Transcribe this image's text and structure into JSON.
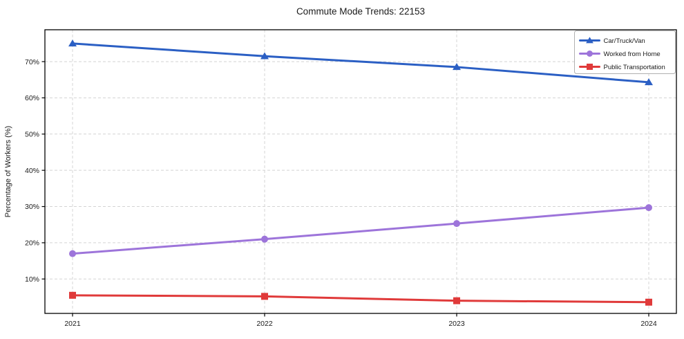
{
  "title": "Commute Mode Trends: 22153",
  "chart_data": {
    "type": "line",
    "title": "Commute Mode Trends: 22153",
    "xlabel": "",
    "ylabel": "Percentage of Workers (%)",
    "x": [
      2021,
      2022,
      2023,
      2024
    ],
    "x_tick_labels": [
      "2021",
      "2022",
      "2023",
      "2024"
    ],
    "y_ticks": [
      10,
      20,
      30,
      40,
      50,
      60,
      70
    ],
    "y_tick_suffix": "%",
    "ylim": [
      0.5,
      78.8
    ],
    "grid": "dashed both axes",
    "legend_position": "upper right",
    "series": [
      {
        "name": "Car/Truck/Van",
        "color": "#2b5fc4",
        "marker": "triangle",
        "values": [
          75.0,
          71.5,
          68.5,
          64.3
        ]
      },
      {
        "name": "Worked from Home",
        "color": "#9d74da",
        "marker": "circle",
        "values": [
          17.0,
          21.0,
          25.3,
          29.7
        ]
      },
      {
        "name": "Public Transportation",
        "color": "#e03a3a",
        "marker": "square",
        "values": [
          5.5,
          5.2,
          4.0,
          3.6
        ]
      }
    ]
  },
  "style_colors": {
    "grid": "#d4d4d4",
    "spine": "#000000",
    "legend_border": "#b0b0b0",
    "legend_background": "#ffffff"
  }
}
